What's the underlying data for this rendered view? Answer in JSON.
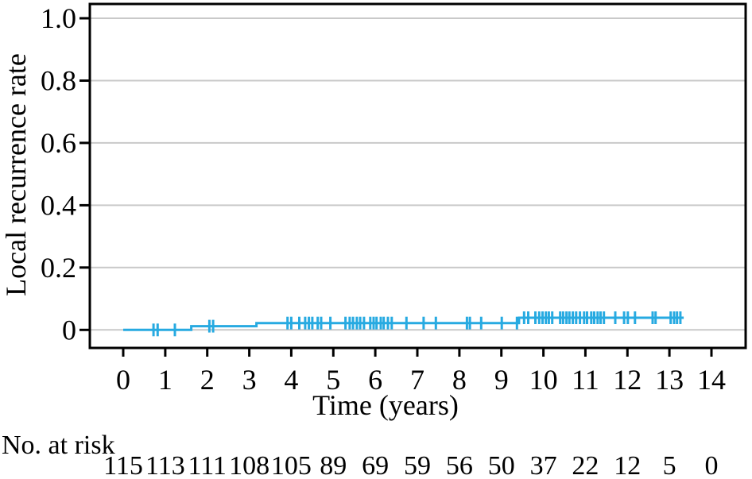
{
  "figure": {
    "y_axis_title": "Local recurrence rate",
    "x_axis_title": "Time (years)",
    "at_risk_label": "No. at risk"
  },
  "chart_data": {
    "type": "line",
    "subtype": "kaplan_meier_step_cumulative_incidence",
    "title": "",
    "xlabel": "Time (years)",
    "ylabel": "Local recurrence rate",
    "xlim": [
      0,
      14
    ],
    "ylim": [
      0,
      1.0
    ],
    "grid": "horizontal",
    "legend": "none",
    "x_ticks": [
      0,
      1,
      2,
      3,
      4,
      5,
      6,
      7,
      8,
      9,
      10,
      11,
      12,
      13,
      14
    ],
    "y_ticks": [
      {
        "value": 0.0,
        "label": "0"
      },
      {
        "value": 0.2,
        "label": "0.2"
      },
      {
        "value": 0.4,
        "label": "0.4"
      },
      {
        "value": 0.6,
        "label": "0.6"
      },
      {
        "value": 0.8,
        "label": "0.8"
      },
      {
        "value": 1.0,
        "label": "1.0"
      }
    ],
    "colors": {
      "line": "#27AAE1",
      "grid": "#C9C9C9",
      "axis": "#000000",
      "text": "#000000"
    },
    "series": [
      {
        "name": "Local recurrence rate",
        "steps": [
          [
            0,
            0.0
          ],
          [
            1.62,
            0.012
          ],
          [
            3.17,
            0.022
          ],
          [
            9.42,
            0.039
          ],
          [
            13.34,
            0.039
          ]
        ],
        "censor_times": [
          0.72,
          0.82,
          1.23,
          2.05,
          2.14,
          3.91,
          4.0,
          4.19,
          4.33,
          4.42,
          4.5,
          4.63,
          4.71,
          4.93,
          5.29,
          5.39,
          5.47,
          5.56,
          5.64,
          5.73,
          5.88,
          5.96,
          6.03,
          6.13,
          6.2,
          6.3,
          6.39,
          6.74,
          7.15,
          7.44,
          8.18,
          8.25,
          8.52,
          9.01,
          9.37,
          9.54,
          9.64,
          9.81,
          9.9,
          9.98,
          10.06,
          10.13,
          10.21,
          10.4,
          10.47,
          10.55,
          10.62,
          10.7,
          10.78,
          10.87,
          10.97,
          11.04,
          11.14,
          11.21,
          11.29,
          11.36,
          11.44,
          11.71,
          11.92,
          12.01,
          12.18,
          12.6,
          12.67,
          13.03,
          13.11,
          13.18,
          13.26
        ]
      }
    ],
    "at_risk": {
      "label": "No. at risk",
      "times": [
        0,
        1,
        2,
        3,
        4,
        5,
        6,
        7,
        8,
        9,
        10,
        11,
        12,
        13,
        14
      ],
      "counts": [
        115,
        113,
        111,
        108,
        105,
        89,
        69,
        59,
        56,
        50,
        37,
        22,
        12,
        5,
        0
      ]
    }
  }
}
